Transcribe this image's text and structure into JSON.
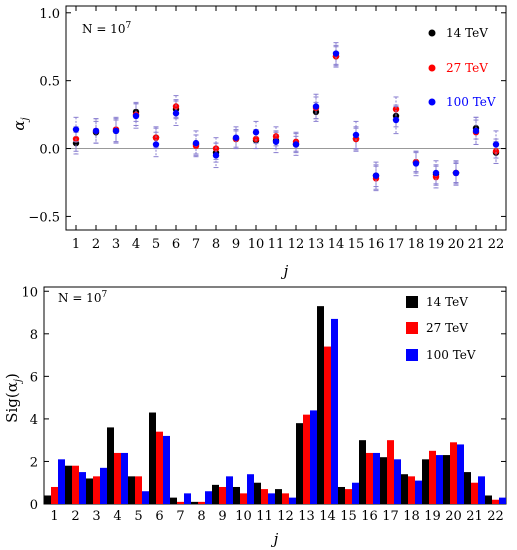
{
  "chart_data": [
    {
      "type": "scatter",
      "annotation": "N = 10",
      "annotation_exp": "7",
      "xlabel": "j",
      "ylabel": "α",
      "ylabel_sub": "j",
      "ylim": [
        -0.6,
        1.05
      ],
      "yticks": [
        -0.5,
        0.0,
        0.5,
        1.0
      ],
      "ytick_labels": [
        "−0.5",
        "0.0",
        "0.5",
        "1.0"
      ],
      "xlim": [
        0.5,
        22.5
      ],
      "categories": [
        "1",
        "2",
        "3",
        "4",
        "5",
        "6",
        "7",
        "8",
        "9",
        "10",
        "11",
        "12",
        "13",
        "14",
        "15",
        "16",
        "17",
        "18",
        "19",
        "20",
        "21",
        "22"
      ],
      "legend_position": "top-right",
      "series": [
        {
          "name": "14 TeV",
          "color": "#000000",
          "values": [
            0.04,
            0.12,
            0.13,
            0.27,
            0.08,
            0.29,
            0.03,
            -0.03,
            0.07,
            0.06,
            0.06,
            0.03,
            0.27,
            0.68,
            0.07,
            -0.2,
            0.24,
            -0.1,
            -0.19,
            -0.18,
            0.15,
            -0.03
          ],
          "errors": [
            0.08,
            0.08,
            0.08,
            0.07,
            0.07,
            0.07,
            0.07,
            0.07,
            0.06,
            0.06,
            0.06,
            0.06,
            0.07,
            0.07,
            0.08,
            0.08,
            0.08,
            0.07,
            0.07,
            0.07,
            0.08,
            0.08
          ]
        },
        {
          "name": "27 TeV",
          "color": "#ff0000",
          "values": [
            0.07,
            0.13,
            0.14,
            0.25,
            0.08,
            0.31,
            0.02,
            0.0,
            0.07,
            0.07,
            0.09,
            0.05,
            0.3,
            0.68,
            0.07,
            -0.22,
            0.29,
            -0.1,
            -0.21,
            -0.18,
            0.12,
            -0.02
          ],
          "errors": [
            0.09,
            0.09,
            0.09,
            0.08,
            0.08,
            0.08,
            0.08,
            0.08,
            0.07,
            0.07,
            0.07,
            0.07,
            0.08,
            0.08,
            0.09,
            0.09,
            0.09,
            0.08,
            0.08,
            0.08,
            0.09,
            0.09
          ]
        },
        {
          "name": "100 TeV",
          "color": "#0000ff",
          "values": [
            0.14,
            0.13,
            0.13,
            0.24,
            0.03,
            0.26,
            0.04,
            -0.05,
            0.08,
            0.12,
            0.05,
            0.03,
            0.31,
            0.7,
            0.1,
            -0.2,
            0.21,
            -0.11,
            -0.18,
            -0.18,
            0.13,
            0.03
          ],
          "errors": [
            0.09,
            0.09,
            0.09,
            0.09,
            0.09,
            0.09,
            0.09,
            0.09,
            0.08,
            0.08,
            0.08,
            0.08,
            0.09,
            0.08,
            0.1,
            0.1,
            0.1,
            0.09,
            0.09,
            0.09,
            0.1,
            0.1
          ]
        }
      ]
    },
    {
      "type": "bar",
      "annotation": "N = 10",
      "annotation_exp": "7",
      "xlabel": "j",
      "ylabel": "Sig(α",
      "ylabel_sub": "j",
      "ylabel_tail": ")",
      "ylim": [
        0,
        10.2
      ],
      "yticks": [
        0,
        2,
        4,
        6,
        8,
        10
      ],
      "ytick_labels": [
        "0",
        "2",
        "4",
        "6",
        "8",
        "10"
      ],
      "categories": [
        "1",
        "2",
        "3",
        "4",
        "5",
        "6",
        "7",
        "8",
        "9",
        "10",
        "11",
        "12",
        "13",
        "14",
        "15",
        "16",
        "17",
        "18",
        "19",
        "20",
        "21",
        "22"
      ],
      "legend_position": "top-right",
      "series": [
        {
          "name": "14 TeV",
          "color": "#000000",
          "values": [
            0.4,
            1.8,
            1.2,
            3.6,
            1.3,
            4.3,
            0.3,
            0.1,
            0.9,
            0.8,
            1.0,
            0.7,
            3.8,
            9.3,
            0.8,
            3.0,
            2.2,
            1.4,
            2.1,
            2.3,
            1.5,
            0.4
          ]
        },
        {
          "name": "27 TeV",
          "color": "#ff0000",
          "values": [
            0.8,
            1.8,
            1.3,
            2.4,
            1.3,
            3.4,
            0.1,
            0.1,
            0.8,
            0.5,
            0.7,
            0.5,
            4.2,
            7.4,
            0.7,
            2.4,
            3.0,
            1.3,
            2.5,
            2.9,
            1.0,
            0.2
          ]
        },
        {
          "name": "100 TeV",
          "color": "#0000ff",
          "values": [
            2.1,
            1.5,
            1.7,
            2.4,
            0.6,
            3.2,
            0.5,
            0.6,
            1.3,
            1.4,
            0.5,
            0.3,
            4.4,
            8.7,
            1.0,
            2.4,
            2.1,
            1.1,
            2.3,
            2.8,
            1.3,
            0.3
          ]
        }
      ]
    }
  ]
}
